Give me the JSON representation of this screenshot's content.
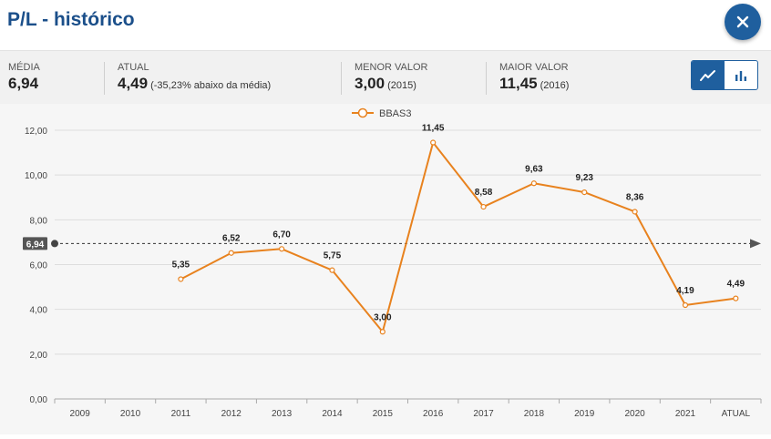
{
  "header": {
    "title": "P/L - histórico",
    "close_icon": "close-icon"
  },
  "stats": {
    "media": {
      "label": "MÉDIA",
      "value": "6,94"
    },
    "atual": {
      "label": "ATUAL",
      "value": "4,49",
      "note": "(-35,23% abaixo da média)"
    },
    "menor": {
      "label": "MENOR VALOR",
      "value": "3,00",
      "note": "(2015)"
    },
    "maior": {
      "label": "MAIOR VALOR",
      "value": "11,45",
      "note": "(2016)"
    }
  },
  "view_toggle": {
    "options": [
      "line-chart-icon",
      "bar-chart-icon"
    ],
    "selected": "line-chart-icon"
  },
  "colors": {
    "series": "#e8821e",
    "accent": "#1f5f9e",
    "average_line": "#333333"
  },
  "chart_data": {
    "type": "line",
    "legend": "top-center",
    "grid": true,
    "categories": [
      "2009",
      "2010",
      "2011",
      "2012",
      "2013",
      "2014",
      "2015",
      "2016",
      "2017",
      "2018",
      "2019",
      "2020",
      "2021",
      "ATUAL"
    ],
    "series": [
      {
        "name": "BBAS3",
        "values": [
          null,
          null,
          5.35,
          6.52,
          6.7,
          5.75,
          3.0,
          11.45,
          8.58,
          9.63,
          9.23,
          8.36,
          4.19,
          4.49
        ],
        "labels": [
          null,
          null,
          "5,35",
          "6,52",
          "6,70",
          "5,75",
          "3,00",
          "11,45",
          "8,58",
          "9,63",
          "9,23",
          "8,36",
          "4,19",
          "4,49"
        ]
      }
    ],
    "ylim": [
      0,
      12
    ],
    "yticks": [
      "0,00",
      "2,00",
      "4,00",
      "6,00",
      "8,00",
      "10,00",
      "12,00"
    ],
    "average": {
      "value": 6.94,
      "label": "6,94"
    }
  }
}
